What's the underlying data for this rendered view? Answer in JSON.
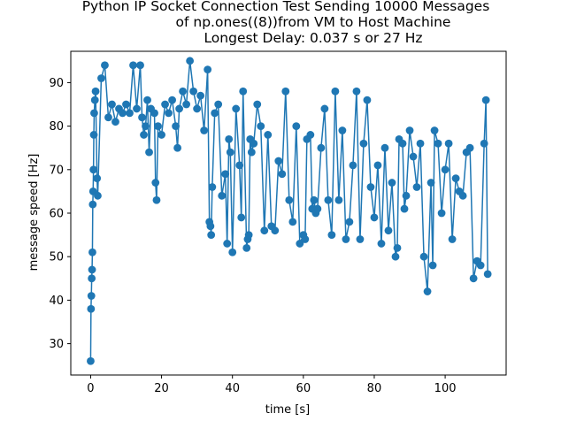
{
  "chart_data": {
    "type": "line",
    "title": [
      "Python IP Socket Connection Test Sending 10000 Messages",
      "of np.ones((8))from VM to Host Machine",
      "Longest Delay: 0.037 s or 27 Hz"
    ],
    "xlabel": "time [s]",
    "ylabel": "message speed [Hz]",
    "xlim": [
      -5.6,
      117.2
    ],
    "ylim": [
      22.8,
      97.2
    ],
    "xticks": [
      0,
      20,
      40,
      60,
      80,
      100
    ],
    "yticks": [
      30,
      40,
      50,
      60,
      70,
      80,
      90
    ],
    "grid": false,
    "legend": "none",
    "marker": "circle",
    "color": "#1f77b4",
    "series": [
      {
        "points": [
          [
            0.0,
            26
          ],
          [
            0.1,
            38
          ],
          [
            0.2,
            41
          ],
          [
            0.3,
            45
          ],
          [
            0.4,
            47
          ],
          [
            0.5,
            51
          ],
          [
            0.6,
            62
          ],
          [
            0.7,
            65
          ],
          [
            0.8,
            70
          ],
          [
            0.9,
            78
          ],
          [
            1.0,
            83
          ],
          [
            1.2,
            86
          ],
          [
            1.4,
            88
          ],
          [
            1.8,
            68
          ],
          [
            2.0,
            64
          ],
          [
            3.0,
            91
          ],
          [
            4.0,
            94
          ],
          [
            5.0,
            82
          ],
          [
            6.0,
            85
          ],
          [
            7.0,
            81
          ],
          [
            8.0,
            84
          ],
          [
            9.0,
            83
          ],
          [
            10.0,
            85
          ],
          [
            11.0,
            83
          ],
          [
            12.0,
            94
          ],
          [
            13.0,
            84
          ],
          [
            14.0,
            94
          ],
          [
            14.5,
            82
          ],
          [
            15.0,
            78
          ],
          [
            15.5,
            80
          ],
          [
            16.0,
            86
          ],
          [
            16.5,
            74
          ],
          [
            17.0,
            84
          ],
          [
            18.0,
            83
          ],
          [
            18.3,
            67
          ],
          [
            18.6,
            63
          ],
          [
            19.0,
            80
          ],
          [
            20.0,
            78
          ],
          [
            21.0,
            85
          ],
          [
            22.0,
            83
          ],
          [
            23.0,
            86
          ],
          [
            24.0,
            80
          ],
          [
            24.5,
            75
          ],
          [
            25.0,
            84
          ],
          [
            26.0,
            88
          ],
          [
            27.0,
            85
          ],
          [
            28.0,
            95
          ],
          [
            29.0,
            88
          ],
          [
            30.0,
            84
          ],
          [
            31.0,
            87
          ],
          [
            32.0,
            79
          ],
          [
            33.0,
            93
          ],
          [
            33.5,
            58
          ],
          [
            33.8,
            57
          ],
          [
            34.0,
            55
          ],
          [
            34.3,
            66
          ],
          [
            35.0,
            83
          ],
          [
            36.0,
            85
          ],
          [
            37.0,
            64
          ],
          [
            38.0,
            69
          ],
          [
            38.5,
            53
          ],
          [
            39.0,
            77
          ],
          [
            39.4,
            74
          ],
          [
            40.0,
            51
          ],
          [
            41.0,
            84
          ],
          [
            42.0,
            71
          ],
          [
            42.5,
            59
          ],
          [
            43.0,
            88
          ],
          [
            44.0,
            52
          ],
          [
            44.3,
            54
          ],
          [
            44.6,
            55
          ],
          [
            45.0,
            77
          ],
          [
            45.4,
            74
          ],
          [
            46.0,
            76
          ],
          [
            47.0,
            85
          ],
          [
            48.0,
            80
          ],
          [
            49.0,
            56
          ],
          [
            50.0,
            78
          ],
          [
            51.0,
            57
          ],
          [
            52.0,
            56
          ],
          [
            53.0,
            72
          ],
          [
            54.0,
            69
          ],
          [
            55.0,
            88
          ],
          [
            56.0,
            63
          ],
          [
            57.0,
            58
          ],
          [
            58.0,
            80
          ],
          [
            59.0,
            53
          ],
          [
            60.0,
            55
          ],
          [
            60.5,
            54
          ],
          [
            61.0,
            77
          ],
          [
            62.0,
            78
          ],
          [
            62.5,
            61
          ],
          [
            63.0,
            63
          ],
          [
            63.5,
            60
          ],
          [
            64.0,
            61
          ],
          [
            65.0,
            75
          ],
          [
            66.0,
            84
          ],
          [
            67.0,
            63
          ],
          [
            68.0,
            55
          ],
          [
            69.0,
            88
          ],
          [
            70.0,
            63
          ],
          [
            71.0,
            79
          ],
          [
            72.0,
            54
          ],
          [
            73.0,
            58
          ],
          [
            74.0,
            71
          ],
          [
            75.0,
            88
          ],
          [
            76.0,
            54
          ],
          [
            77.0,
            76
          ],
          [
            78.0,
            86
          ],
          [
            79.0,
            66
          ],
          [
            80.0,
            59
          ],
          [
            81.0,
            71
          ],
          [
            82.0,
            53
          ],
          [
            83.0,
            75
          ],
          [
            84.0,
            56
          ],
          [
            85.0,
            67
          ],
          [
            86.0,
            50
          ],
          [
            86.5,
            52
          ],
          [
            87.0,
            77
          ],
          [
            88.0,
            76
          ],
          [
            88.5,
            61
          ],
          [
            89.0,
            64
          ],
          [
            90.0,
            79
          ],
          [
            91.0,
            73
          ],
          [
            92.0,
            66
          ],
          [
            93.0,
            76
          ],
          [
            94.0,
            50
          ],
          [
            95.0,
            42
          ],
          [
            96.0,
            67
          ],
          [
            96.5,
            48
          ],
          [
            97.0,
            79
          ],
          [
            98.0,
            76
          ],
          [
            99.0,
            60
          ],
          [
            100.0,
            70
          ],
          [
            101.0,
            76
          ],
          [
            102.0,
            54
          ],
          [
            103.0,
            68
          ],
          [
            104.0,
            65
          ],
          [
            105.0,
            64
          ],
          [
            106.0,
            74
          ],
          [
            107.0,
            75
          ],
          [
            108.0,
            45
          ],
          [
            109.0,
            49
          ],
          [
            110.0,
            48
          ],
          [
            111.0,
            76
          ],
          [
            111.5,
            86
          ],
          [
            112.0,
            46
          ]
        ]
      }
    ]
  }
}
